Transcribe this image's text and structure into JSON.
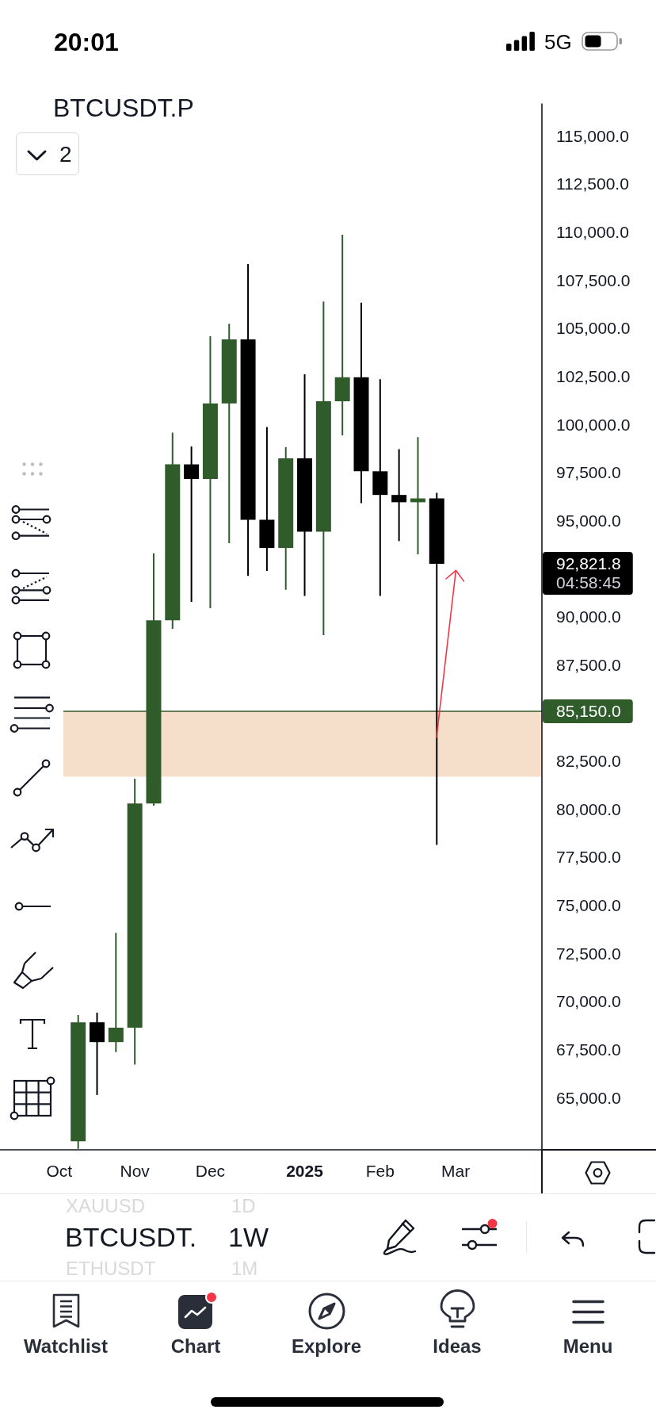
{
  "chart_data": {
    "type": "candlestick",
    "title": "BTCUSDT.P",
    "x": [
      "2024-10-14",
      "2024-10-21",
      "2024-10-28",
      "2024-11-04",
      "2024-11-11",
      "2024-11-18",
      "2024-11-25",
      "2024-12-02",
      "2024-12-09",
      "2024-12-16",
      "2024-12-23",
      "2024-12-30",
      "2025-01-06",
      "2025-01-13",
      "2025-01-20",
      "2025-01-27",
      "2025-02-03",
      "2025-02-10",
      "2025-02-17",
      "2025-02-24"
    ],
    "ohlc": [
      [
        62790,
        69360,
        62400,
        68980
      ],
      [
        68980,
        69480,
        65200,
        67950
      ],
      [
        67950,
        73630,
        67430,
        68700
      ],
      [
        68700,
        81650,
        66780,
        80360
      ],
      [
        80360,
        93370,
        80240,
        89880
      ],
      [
        89880,
        99640,
        89440,
        97990
      ],
      [
        97990,
        98920,
        90840,
        97230
      ],
      [
        97230,
        104650,
        90510,
        101160
      ],
      [
        101160,
        105300,
        93890,
        104490
      ],
      [
        104490,
        108400,
        92190,
        95110
      ],
      [
        95110,
        99930,
        92450,
        93640
      ],
      [
        93640,
        98890,
        91470,
        98300
      ],
      [
        98300,
        102670,
        91150,
        94490
      ],
      [
        94490,
        106460,
        89110,
        101270
      ],
      [
        101270,
        109930,
        99500,
        102520
      ],
      [
        102520,
        106400,
        95970,
        97630
      ],
      [
        97630,
        102420,
        91150,
        96400
      ],
      [
        96400,
        98780,
        94000,
        96020
      ],
      [
        96020,
        99410,
        93310,
        96220
      ],
      [
        96220,
        96510,
        78200,
        92821.8
      ]
    ],
    "colors": [
      "#305c2b",
      "#000000",
      "#305c2b",
      "#305c2b",
      "#305c2b",
      "#305c2b",
      "#000000",
      "#305c2b",
      "#305c2b",
      "#000000",
      "#000000",
      "#305c2b",
      "#000000",
      "#305c2b",
      "#305c2b",
      "#000000",
      "#000000",
      "#000000",
      "#305c2b",
      "#000000"
    ],
    "xlim": [
      "2024-09-15",
      "2025-04-04"
    ],
    "xticks": [
      {
        "value": "2024-10-07",
        "label": "Oct"
      },
      {
        "value": "2024-11-04",
        "label": "Nov"
      },
      {
        "value": "2024-12-02",
        "label": "Dec"
      },
      {
        "value": "2025-01-06",
        "label": "2025"
      },
      {
        "value": "2025-02-03",
        "label": "Feb"
      },
      {
        "value": "2025-03-03",
        "label": "Mar"
      }
    ],
    "ylim": [
      62350,
      116750
    ],
    "yticks": [
      {
        "value": 65000,
        "label": "65,000.0"
      },
      {
        "value": 67500,
        "label": "67,500.0"
      },
      {
        "value": 70000,
        "label": "70,000.0"
      },
      {
        "value": 72500,
        "label": "72,500.0"
      },
      {
        "value": 75000,
        "label": "75,000.0"
      },
      {
        "value": 77500,
        "label": "77,500.0"
      },
      {
        "value": 80000,
        "label": "80,000.0"
      },
      {
        "value": 82500,
        "label": "82,500.0"
      },
      {
        "value": 87500,
        "label": "87,500.0"
      },
      {
        "value": 90000,
        "label": "90,000.0"
      },
      {
        "value": 95000,
        "label": "95,000.0"
      },
      {
        "value": 97500,
        "label": "97,500.0"
      },
      {
        "value": 100000,
        "label": "100,000.0"
      },
      {
        "value": 102500,
        "label": "102,500.0"
      },
      {
        "value": 105000,
        "label": "105,000.0"
      },
      {
        "value": 107500,
        "label": "107,500.0"
      },
      {
        "value": 110000,
        "label": "110,000.0"
      },
      {
        "value": 112500,
        "label": "112,500.0"
      },
      {
        "value": 115000,
        "label": "115,000.0"
      }
    ],
    "ref_lines": [
      {
        "axis": "y",
        "value": 85150,
        "label": "85,150.0",
        "color": "#305c2b"
      }
    ],
    "bands": [
      {
        "axis": "y",
        "from": 81750,
        "to": 85150,
        "color": "#f6dfca"
      }
    ],
    "annotations": [
      "92,821.8",
      "04:58:45",
      "20:01",
      "5G",
      "2",
      "XAUUSD",
      "1D",
      "BTCUSDT.",
      "1W",
      "ETHUSDT",
      "1M",
      "Watchlist",
      "Chart",
      "Explore",
      "Ideas",
      "Menu"
    ]
  }
}
